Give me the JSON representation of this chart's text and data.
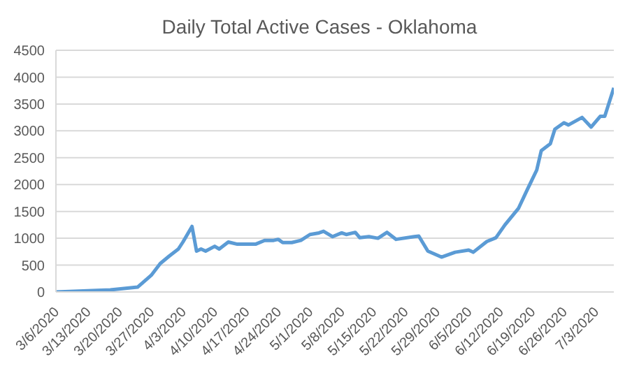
{
  "chart_data": {
    "type": "line",
    "title": "Daily Total Active Cases - Oklahoma",
    "x": [
      "2020-03-06",
      "2020-03-18",
      "2020-03-24",
      "2020-03-27",
      "2020-03-29",
      "2020-03-31",
      "2020-04-02",
      "2020-04-03",
      "2020-04-05",
      "2020-04-06",
      "2020-04-07",
      "2020-04-08",
      "2020-04-10",
      "2020-04-11",
      "2020-04-13",
      "2020-04-15",
      "2020-04-19",
      "2020-04-21",
      "2020-04-23",
      "2020-04-24",
      "2020-04-25",
      "2020-04-27",
      "2020-04-29",
      "2020-05-01",
      "2020-05-03",
      "2020-05-04",
      "2020-05-06",
      "2020-05-08",
      "2020-05-09",
      "2020-05-11",
      "2020-05-12",
      "2020-05-14",
      "2020-05-16",
      "2020-05-18",
      "2020-05-20",
      "2020-05-24",
      "2020-05-25",
      "2020-05-27",
      "2020-05-30",
      "2020-06-02",
      "2020-06-05",
      "2020-06-06",
      "2020-06-09",
      "2020-06-11",
      "2020-06-13",
      "2020-06-16",
      "2020-06-18",
      "2020-06-20",
      "2020-06-21",
      "2020-06-23",
      "2020-06-24",
      "2020-06-26",
      "2020-06-27",
      "2020-06-30",
      "2020-07-02",
      "2020-07-04",
      "2020-07-05",
      "2020-07-07"
    ],
    "series": [
      {
        "color": "#5b9bd5",
        "values": [
          0,
          40,
          90,
          310,
          530,
          670,
          800,
          930,
          1220,
          760,
          800,
          760,
          850,
          800,
          930,
          890,
          890,
          960,
          960,
          980,
          920,
          920,
          960,
          1070,
          1100,
          1130,
          1030,
          1100,
          1070,
          1110,
          1010,
          1030,
          1000,
          1110,
          980,
          1030,
          1040,
          760,
          650,
          740,
          780,
          740,
          940,
          1010,
          1250,
          1560,
          1920,
          2270,
          2630,
          2760,
          3030,
          3150,
          3110,
          3250,
          3070,
          3270,
          3270,
          3800
        ]
      }
    ],
    "xlim": [
      "2020-03-06",
      "2020-07-07"
    ],
    "xticks": [
      {
        "value": "2020-03-06",
        "label": "3/6/2020"
      },
      {
        "value": "2020-03-13",
        "label": "3/13/2020"
      },
      {
        "value": "2020-03-20",
        "label": "3/20/2020"
      },
      {
        "value": "2020-03-27",
        "label": "3/27/2020"
      },
      {
        "value": "2020-04-03",
        "label": "4/3/2020"
      },
      {
        "value": "2020-04-10",
        "label": "4/10/2020"
      },
      {
        "value": "2020-04-17",
        "label": "4/17/2020"
      },
      {
        "value": "2020-04-24",
        "label": "4/24/2020"
      },
      {
        "value": "2020-05-01",
        "label": "5/1/2020"
      },
      {
        "value": "2020-05-08",
        "label": "5/8/2020"
      },
      {
        "value": "2020-05-15",
        "label": "5/15/2020"
      },
      {
        "value": "2020-05-22",
        "label": "5/22/2020"
      },
      {
        "value": "2020-05-29",
        "label": "5/29/2020"
      },
      {
        "value": "2020-06-05",
        "label": "6/5/2020"
      },
      {
        "value": "2020-06-12",
        "label": "6/12/2020"
      },
      {
        "value": "2020-06-19",
        "label": "6/19/2020"
      },
      {
        "value": "2020-06-26",
        "label": "6/26/2020"
      },
      {
        "value": "2020-07-03",
        "label": "7/3/2020"
      }
    ],
    "ylim": [
      0,
      4500
    ],
    "yticks": [
      0,
      500,
      1000,
      1500,
      2000,
      2500,
      3000,
      3500,
      4000,
      4500
    ],
    "grid": "y",
    "legend": false,
    "marker": "none",
    "line_style": "solid"
  }
}
